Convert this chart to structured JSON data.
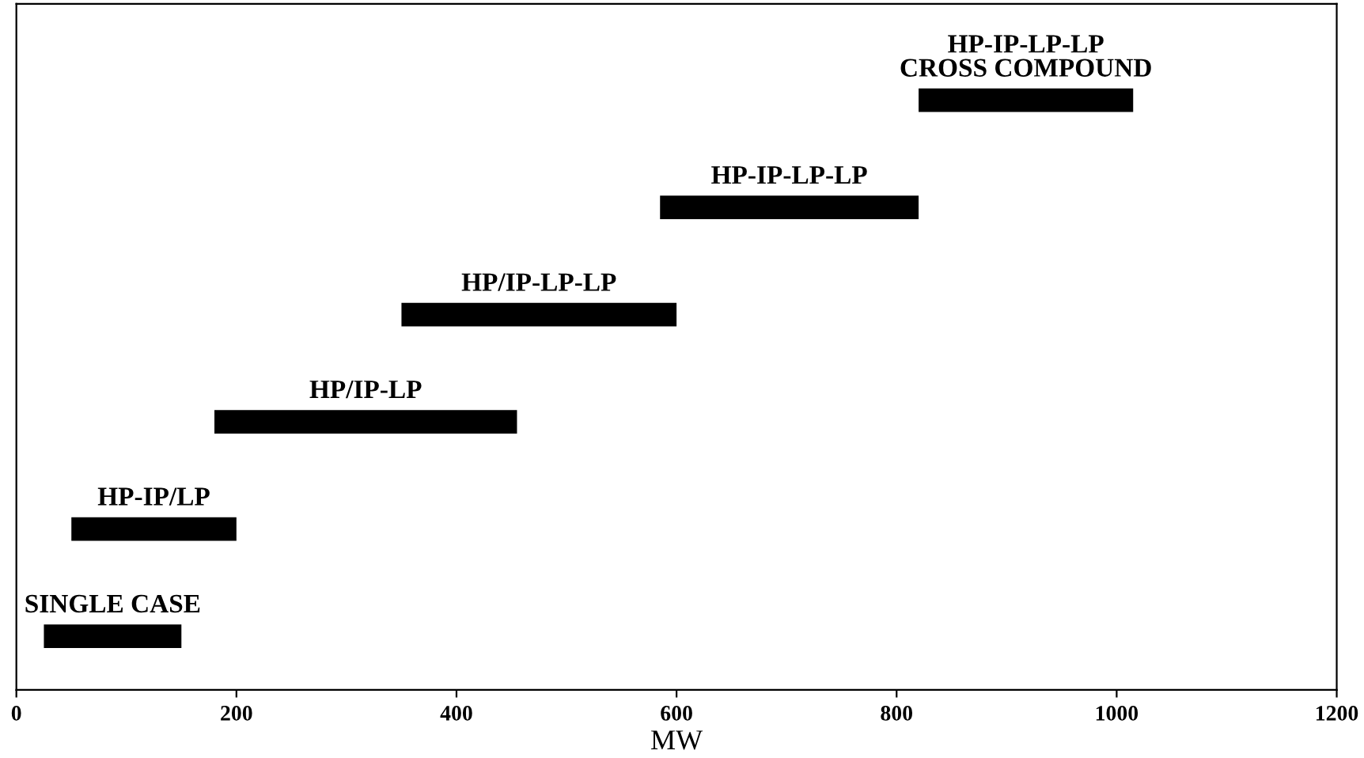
{
  "chart_data": {
    "type": "bar",
    "orientation": "horizontal",
    "xlabel": "MW",
    "categories": [
      "HP-IP-LP-LP\nCROSS COMPOUND",
      "HP-IP-LP-LP",
      "HP/IP-LP-LP",
      "HP/IP-LP",
      "HP-IP/LP",
      "SINGLE CASE"
    ],
    "base": [
      820,
      585,
      350,
      180,
      50,
      25
    ],
    "values": [
      195,
      235,
      250,
      275,
      150,
      125
    ],
    "color": "#000000",
    "xlim": [
      0,
      1200
    ],
    "xticks": [
      0,
      200,
      400,
      600,
      800,
      1000,
      1200
    ],
    "tick_labels": "x",
    "grid": false,
    "legend": false
  }
}
